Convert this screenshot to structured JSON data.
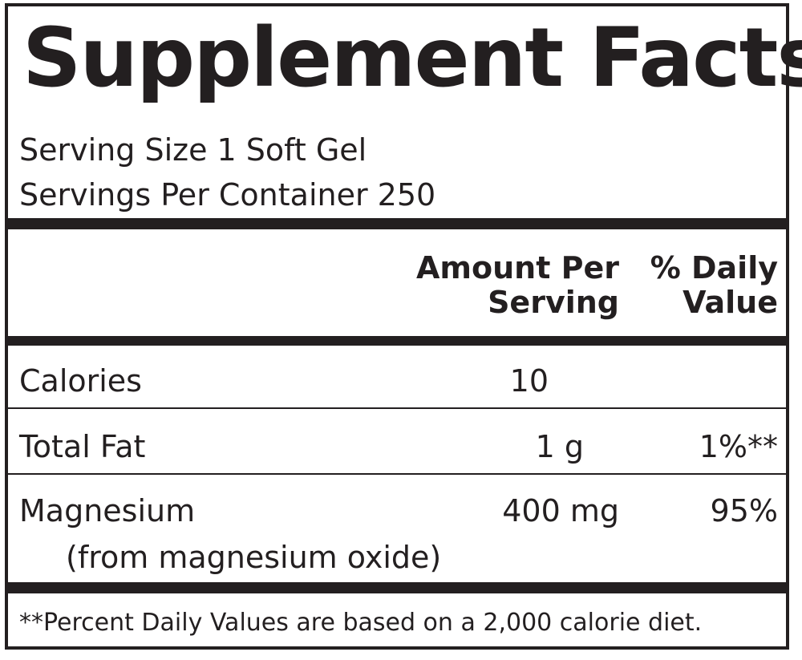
{
  "title": "Supplement Facts",
  "serving_size": "Serving Size 1 Soft Gel",
  "servings_per_container": "Servings Per Container 250",
  "columns": {
    "amount_line1": "Amount Per",
    "amount_line2": "Serving",
    "dv_line1": "% Daily",
    "dv_line2": "Value"
  },
  "rows": [
    {
      "name": "Calories",
      "amount": "10",
      "dv": ""
    },
    {
      "name": "Total Fat",
      "amount": "1 g",
      "dv": "1%**"
    },
    {
      "name": "Magnesium",
      "sub": "(from magnesium oxide)",
      "amount": "400 mg",
      "dv": "95%"
    }
  ],
  "footnote": "**Percent Daily Values are based on a 2,000 calorie diet."
}
